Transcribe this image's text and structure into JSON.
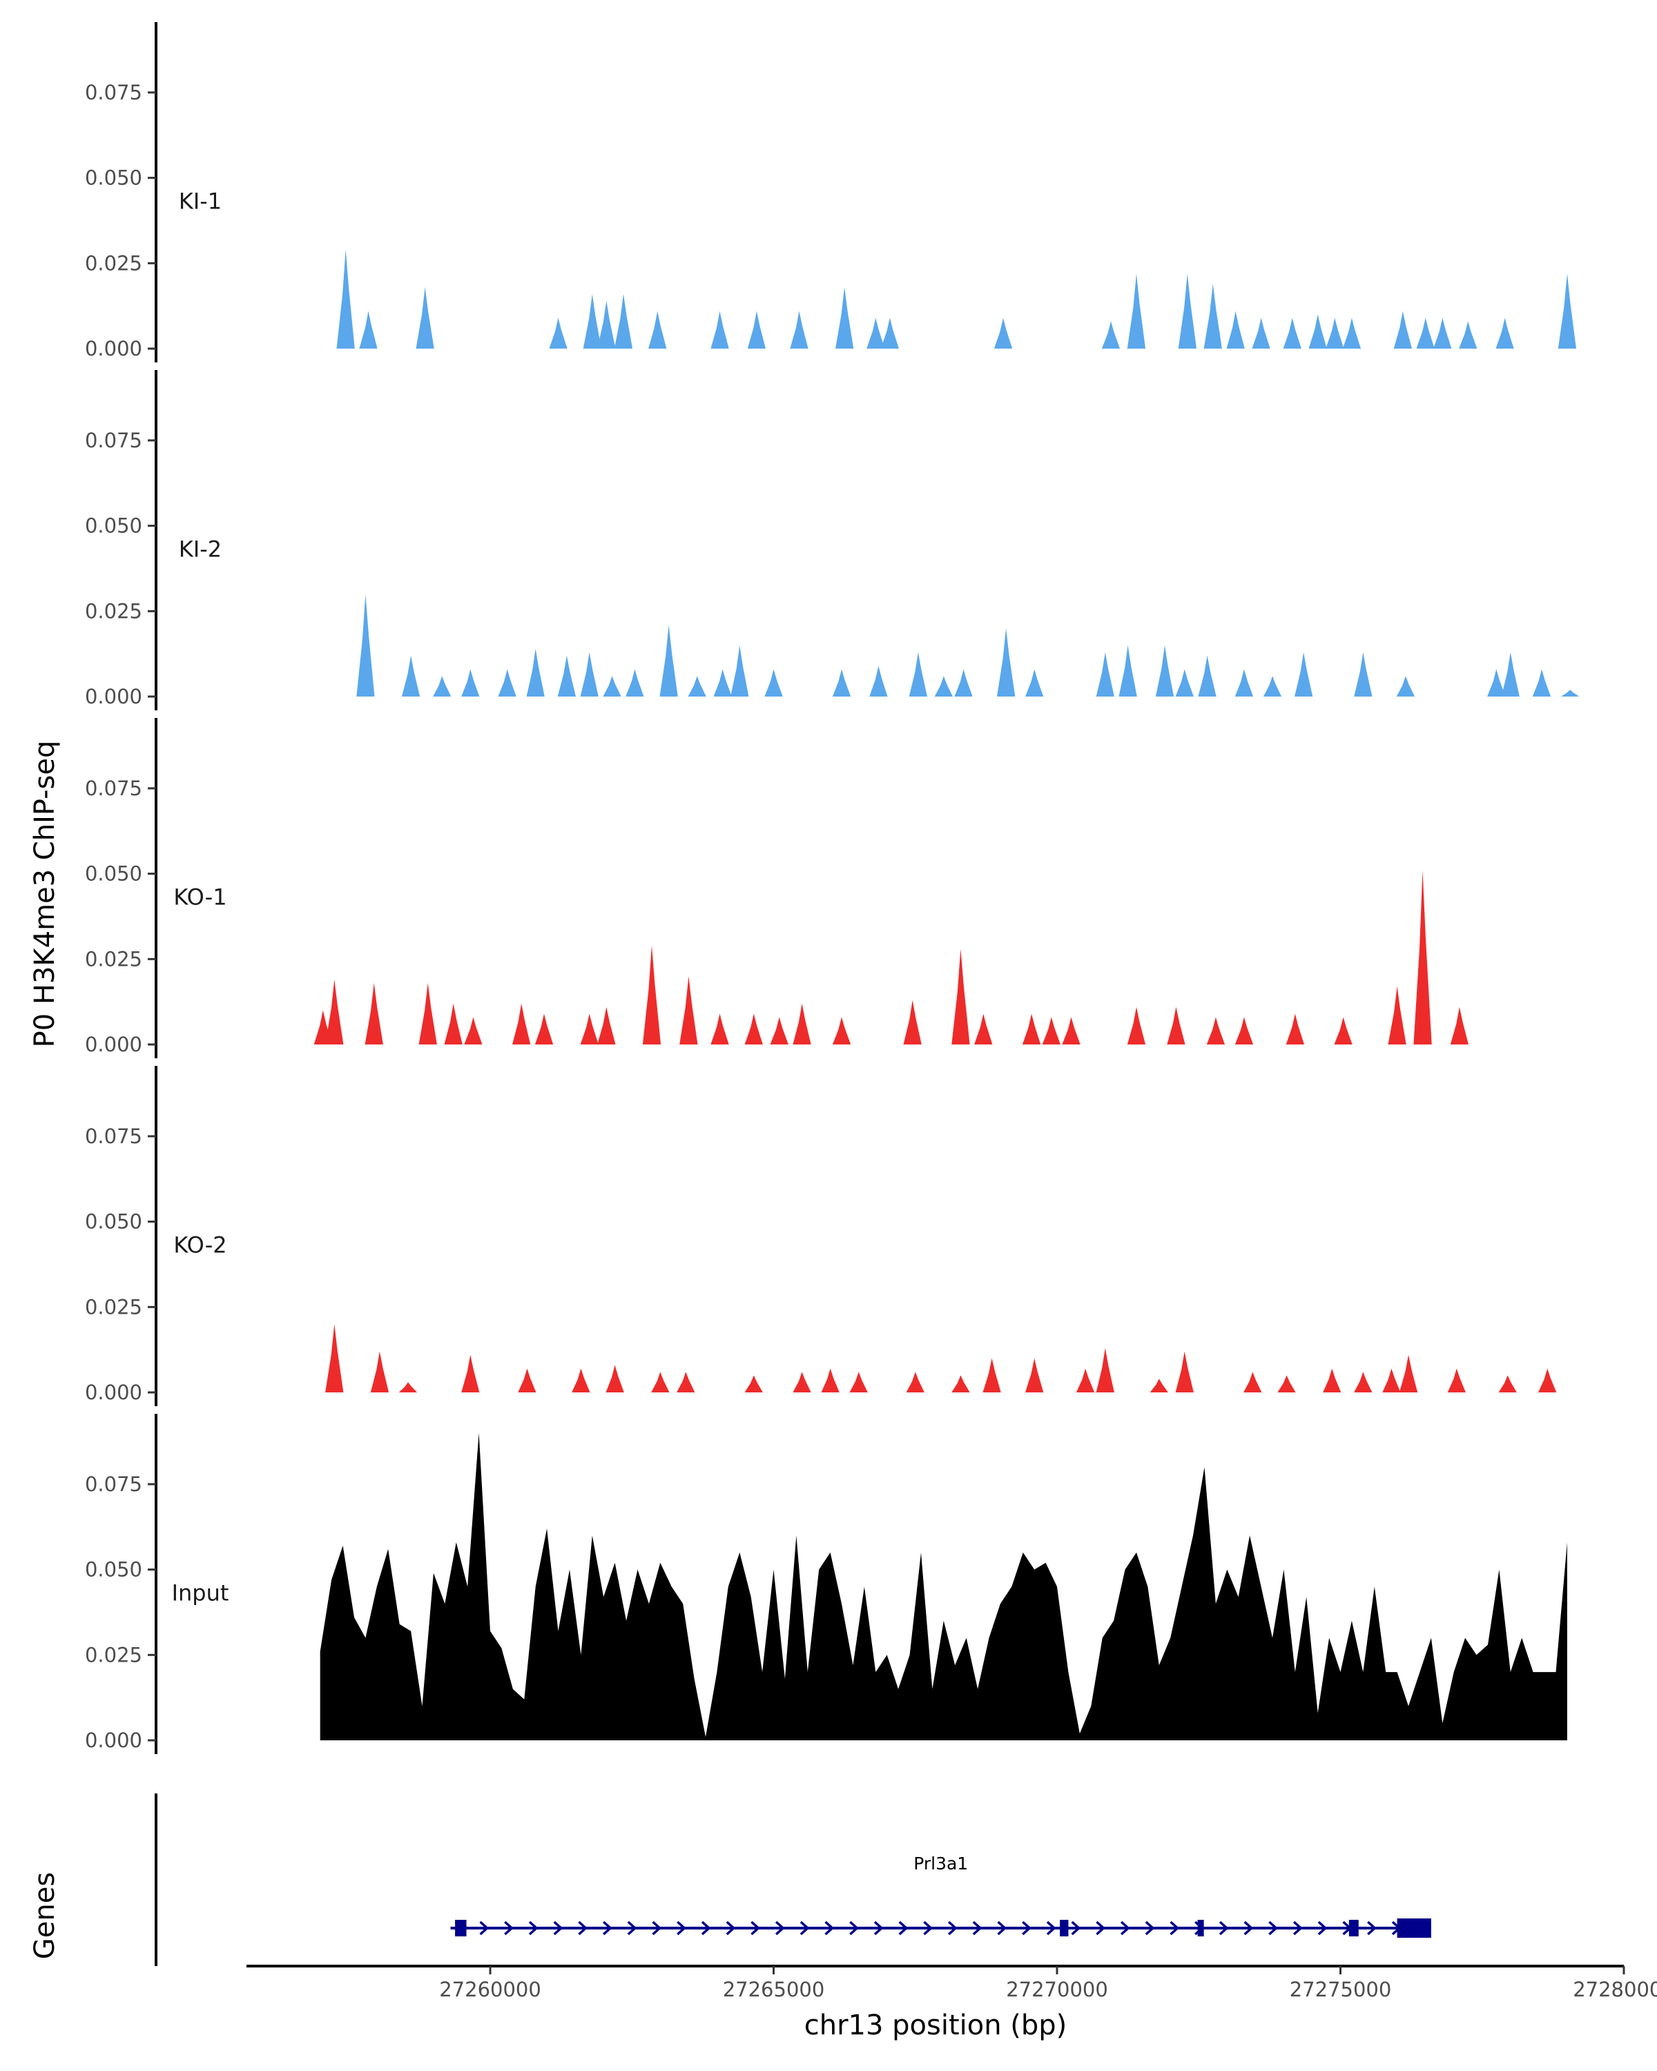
{
  "chart_data": {
    "type": "area",
    "title": "",
    "ylabel": "P0 H3K4me3 ChIP-seq",
    "xlabel": "chr13 position (bp)",
    "xlim": [
      27255700,
      27280000
    ],
    "ylim": [
      0,
      0.095
    ],
    "y_ticks": [
      0,
      0.025,
      0.05,
      0.075
    ],
    "y_tick_labels": [
      "0.000",
      "0.025",
      "0.050",
      "0.075"
    ],
    "x_ticks": [
      27260000,
      27265000,
      27270000,
      27275000,
      27280000
    ],
    "x_tick_labels": [
      "27260000",
      "27265000",
      "27270000",
      "27275000",
      "27280000"
    ],
    "colors": {
      "KI": "#5aa7ec",
      "KO": "#ee2b2b",
      "Input": "#000000",
      "gene": "#00008b"
    },
    "series": [
      {
        "name": "KI-1",
        "color": "#5aa7ec",
        "peaks": [
          [
            27257450,
            0.029
          ],
          [
            27257850,
            0.011
          ],
          [
            27258850,
            0.018
          ],
          [
            27261200,
            0.009
          ],
          [
            27261800,
            0.016
          ],
          [
            27262050,
            0.014
          ],
          [
            27262350,
            0.016
          ],
          [
            27262950,
            0.011
          ],
          [
            27264050,
            0.011
          ],
          [
            27264700,
            0.011
          ],
          [
            27265450,
            0.011
          ],
          [
            27266250,
            0.018
          ],
          [
            27266800,
            0.009
          ],
          [
            27267050,
            0.009
          ],
          [
            27269050,
            0.009
          ],
          [
            27270950,
            0.008
          ],
          [
            27271400,
            0.022
          ],
          [
            27272300,
            0.022
          ],
          [
            27272750,
            0.019
          ],
          [
            27273150,
            0.011
          ],
          [
            27273600,
            0.009
          ],
          [
            27274150,
            0.009
          ],
          [
            27274600,
            0.01
          ],
          [
            27274900,
            0.009
          ],
          [
            27275200,
            0.009
          ],
          [
            27276100,
            0.011
          ],
          [
            27276500,
            0.009
          ],
          [
            27276800,
            0.009
          ],
          [
            27277250,
            0.008
          ],
          [
            27277900,
            0.009
          ],
          [
            27279000,
            0.022
          ]
        ]
      },
      {
        "name": "KI-2",
        "color": "#5aa7ec",
        "peaks": [
          [
            27257800,
            0.03
          ],
          [
            27258600,
            0.012
          ],
          [
            27259150,
            0.006
          ],
          [
            27259650,
            0.008
          ],
          [
            27260300,
            0.008
          ],
          [
            27260800,
            0.014
          ],
          [
            27261350,
            0.012
          ],
          [
            27261750,
            0.013
          ],
          [
            27262150,
            0.006
          ],
          [
            27262550,
            0.008
          ],
          [
            27263150,
            0.021
          ],
          [
            27263650,
            0.006
          ],
          [
            27264100,
            0.008
          ],
          [
            27264400,
            0.015
          ],
          [
            27265000,
            0.008
          ],
          [
            27266200,
            0.008
          ],
          [
            27266850,
            0.009
          ],
          [
            27267550,
            0.013
          ],
          [
            27268000,
            0.006
          ],
          [
            27268350,
            0.008
          ],
          [
            27269100,
            0.02
          ],
          [
            27269600,
            0.008
          ],
          [
            27270850,
            0.013
          ],
          [
            27271250,
            0.015
          ],
          [
            27271900,
            0.015
          ],
          [
            27272250,
            0.008
          ],
          [
            27272650,
            0.012
          ],
          [
            27273300,
            0.008
          ],
          [
            27273800,
            0.006
          ],
          [
            27274350,
            0.013
          ],
          [
            27275400,
            0.013
          ],
          [
            27276150,
            0.006
          ],
          [
            27277750,
            0.008
          ],
          [
            27278000,
            0.013
          ],
          [
            27278550,
            0.008
          ],
          [
            27279050,
            0.002
          ]
        ]
      },
      {
        "name": "KO-1",
        "color": "#ee2b2b",
        "peaks": [
          [
            27257050,
            0.01
          ],
          [
            27257250,
            0.019
          ],
          [
            27257950,
            0.018
          ],
          [
            27258900,
            0.018
          ],
          [
            27259350,
            0.012
          ],
          [
            27259700,
            0.008
          ],
          [
            27260550,
            0.012
          ],
          [
            27260950,
            0.009
          ],
          [
            27261750,
            0.009
          ],
          [
            27262050,
            0.011
          ],
          [
            27262850,
            0.029
          ],
          [
            27263500,
            0.02
          ],
          [
            27264050,
            0.009
          ],
          [
            27264650,
            0.009
          ],
          [
            27265100,
            0.008
          ],
          [
            27265500,
            0.012
          ],
          [
            27266200,
            0.008
          ],
          [
            27267450,
            0.013
          ],
          [
            27268300,
            0.028
          ],
          [
            27268700,
            0.009
          ],
          [
            27269550,
            0.009
          ],
          [
            27269900,
            0.008
          ],
          [
            27270250,
            0.008
          ],
          [
            27271400,
            0.011
          ],
          [
            27272100,
            0.011
          ],
          [
            27272800,
            0.008
          ],
          [
            27273300,
            0.008
          ],
          [
            27274200,
            0.009
          ],
          [
            27275050,
            0.008
          ],
          [
            27276000,
            0.017
          ],
          [
            27276450,
            0.051
          ],
          [
            27277100,
            0.011
          ]
        ]
      },
      {
        "name": "KO-2",
        "color": "#ee2b2b",
        "peaks": [
          [
            27257250,
            0.02
          ],
          [
            27258050,
            0.012
          ],
          [
            27258550,
            0.003
          ],
          [
            27259650,
            0.011
          ],
          [
            27260650,
            0.007
          ],
          [
            27261600,
            0.007
          ],
          [
            27262200,
            0.008
          ],
          [
            27263000,
            0.006
          ],
          [
            27263450,
            0.006
          ],
          [
            27264650,
            0.005
          ],
          [
            27265500,
            0.006
          ],
          [
            27266000,
            0.007
          ],
          [
            27266500,
            0.006
          ],
          [
            27267500,
            0.006
          ],
          [
            27268300,
            0.005
          ],
          [
            27268850,
            0.01
          ],
          [
            27269600,
            0.01
          ],
          [
            27270500,
            0.007
          ],
          [
            27270850,
            0.013
          ],
          [
            27271800,
            0.004
          ],
          [
            27272250,
            0.012
          ],
          [
            27273450,
            0.006
          ],
          [
            27274050,
            0.005
          ],
          [
            27274850,
            0.007
          ],
          [
            27275400,
            0.006
          ],
          [
            27275900,
            0.007
          ],
          [
            27276200,
            0.011
          ],
          [
            27277050,
            0.007
          ],
          [
            27277950,
            0.005
          ],
          [
            27278650,
            0.007
          ]
        ]
      },
      {
        "name": "Input",
        "color": "#000000",
        "x": [
          27257000,
          27257200,
          27257400,
          27257600,
          27257800,
          27258000,
          27258200,
          27258400,
          27258600,
          27258800,
          27259000,
          27259200,
          27259400,
          27259600,
          27259800,
          27260000,
          27260200,
          27260400,
          27260600,
          27260800,
          27261000,
          27261200,
          27261400,
          27261600,
          27261800,
          27262000,
          27262200,
          27262400,
          27262600,
          27262800,
          27263000,
          27263200,
          27263400,
          27263600,
          27263800,
          27264000,
          27264200,
          27264400,
          27264600,
          27264800,
          27265000,
          27265200,
          27265400,
          27265600,
          27265800,
          27266000,
          27266200,
          27266400,
          27266600,
          27266800,
          27267000,
          27267200,
          27267400,
          27267600,
          27267800,
          27268000,
          27268200,
          27268400,
          27268600,
          27268800,
          27269000,
          27269200,
          27269400,
          27269600,
          27269800,
          27270000,
          27270200,
          27270400,
          27270600,
          27270800,
          27271000,
          27271200,
          27271400,
          27271600,
          27271800,
          27272000,
          27272200,
          27272400,
          27272600,
          27272800,
          27273000,
          27273200,
          27273400,
          27273600,
          27273800,
          27274000,
          27274200,
          27274400,
          27274600,
          27274800,
          27275000,
          27275200,
          27275400,
          27275600,
          27275800,
          27276000,
          27276200,
          27276400,
          27276600,
          27276800,
          27277000,
          27277200,
          27277400,
          27277600,
          27277800,
          27278000,
          27278200,
          27278400,
          27278600,
          27278800,
          27279000
        ],
        "values": [
          0.026,
          0.047,
          0.057,
          0.036,
          0.03,
          0.045,
          0.056,
          0.034,
          0.032,
          0.01,
          0.049,
          0.04,
          0.058,
          0.045,
          0.09,
          0.032,
          0.027,
          0.015,
          0.012,
          0.045,
          0.062,
          0.032,
          0.05,
          0.025,
          0.06,
          0.042,
          0.052,
          0.035,
          0.05,
          0.04,
          0.052,
          0.045,
          0.04,
          0.018,
          0.001,
          0.02,
          0.045,
          0.055,
          0.042,
          0.02,
          0.05,
          0.018,
          0.06,
          0.02,
          0.05,
          0.055,
          0.04,
          0.022,
          0.045,
          0.02,
          0.025,
          0.015,
          0.025,
          0.055,
          0.015,
          0.035,
          0.022,
          0.03,
          0.015,
          0.03,
          0.04,
          0.045,
          0.055,
          0.05,
          0.052,
          0.045,
          0.02,
          0.002,
          0.01,
          0.03,
          0.035,
          0.05,
          0.055,
          0.045,
          0.022,
          0.03,
          0.045,
          0.06,
          0.08,
          0.04,
          0.05,
          0.042,
          0.06,
          0.045,
          0.03,
          0.05,
          0.02,
          0.042,
          0.008,
          0.03,
          0.02,
          0.035,
          0.02,
          0.045,
          0.02,
          0.02,
          0.01,
          0.02,
          0.03,
          0.005,
          0.02,
          0.03,
          0.025,
          0.028,
          0.05,
          0.02,
          0.03,
          0.02,
          0.02,
          0.02,
          0.058
        ]
      }
    ],
    "genes": [
      {
        "name": "Prl3a1",
        "start": 27259300,
        "end": 27276600,
        "strand": "+",
        "exons": [
          [
            27259380,
            27259580
          ],
          [
            27270050,
            27270200
          ],
          [
            27272480,
            27272560
          ],
          [
            27275150,
            27275320
          ],
          [
            27276000,
            27276600
          ]
        ]
      }
    ],
    "genes_label": "Genes"
  }
}
